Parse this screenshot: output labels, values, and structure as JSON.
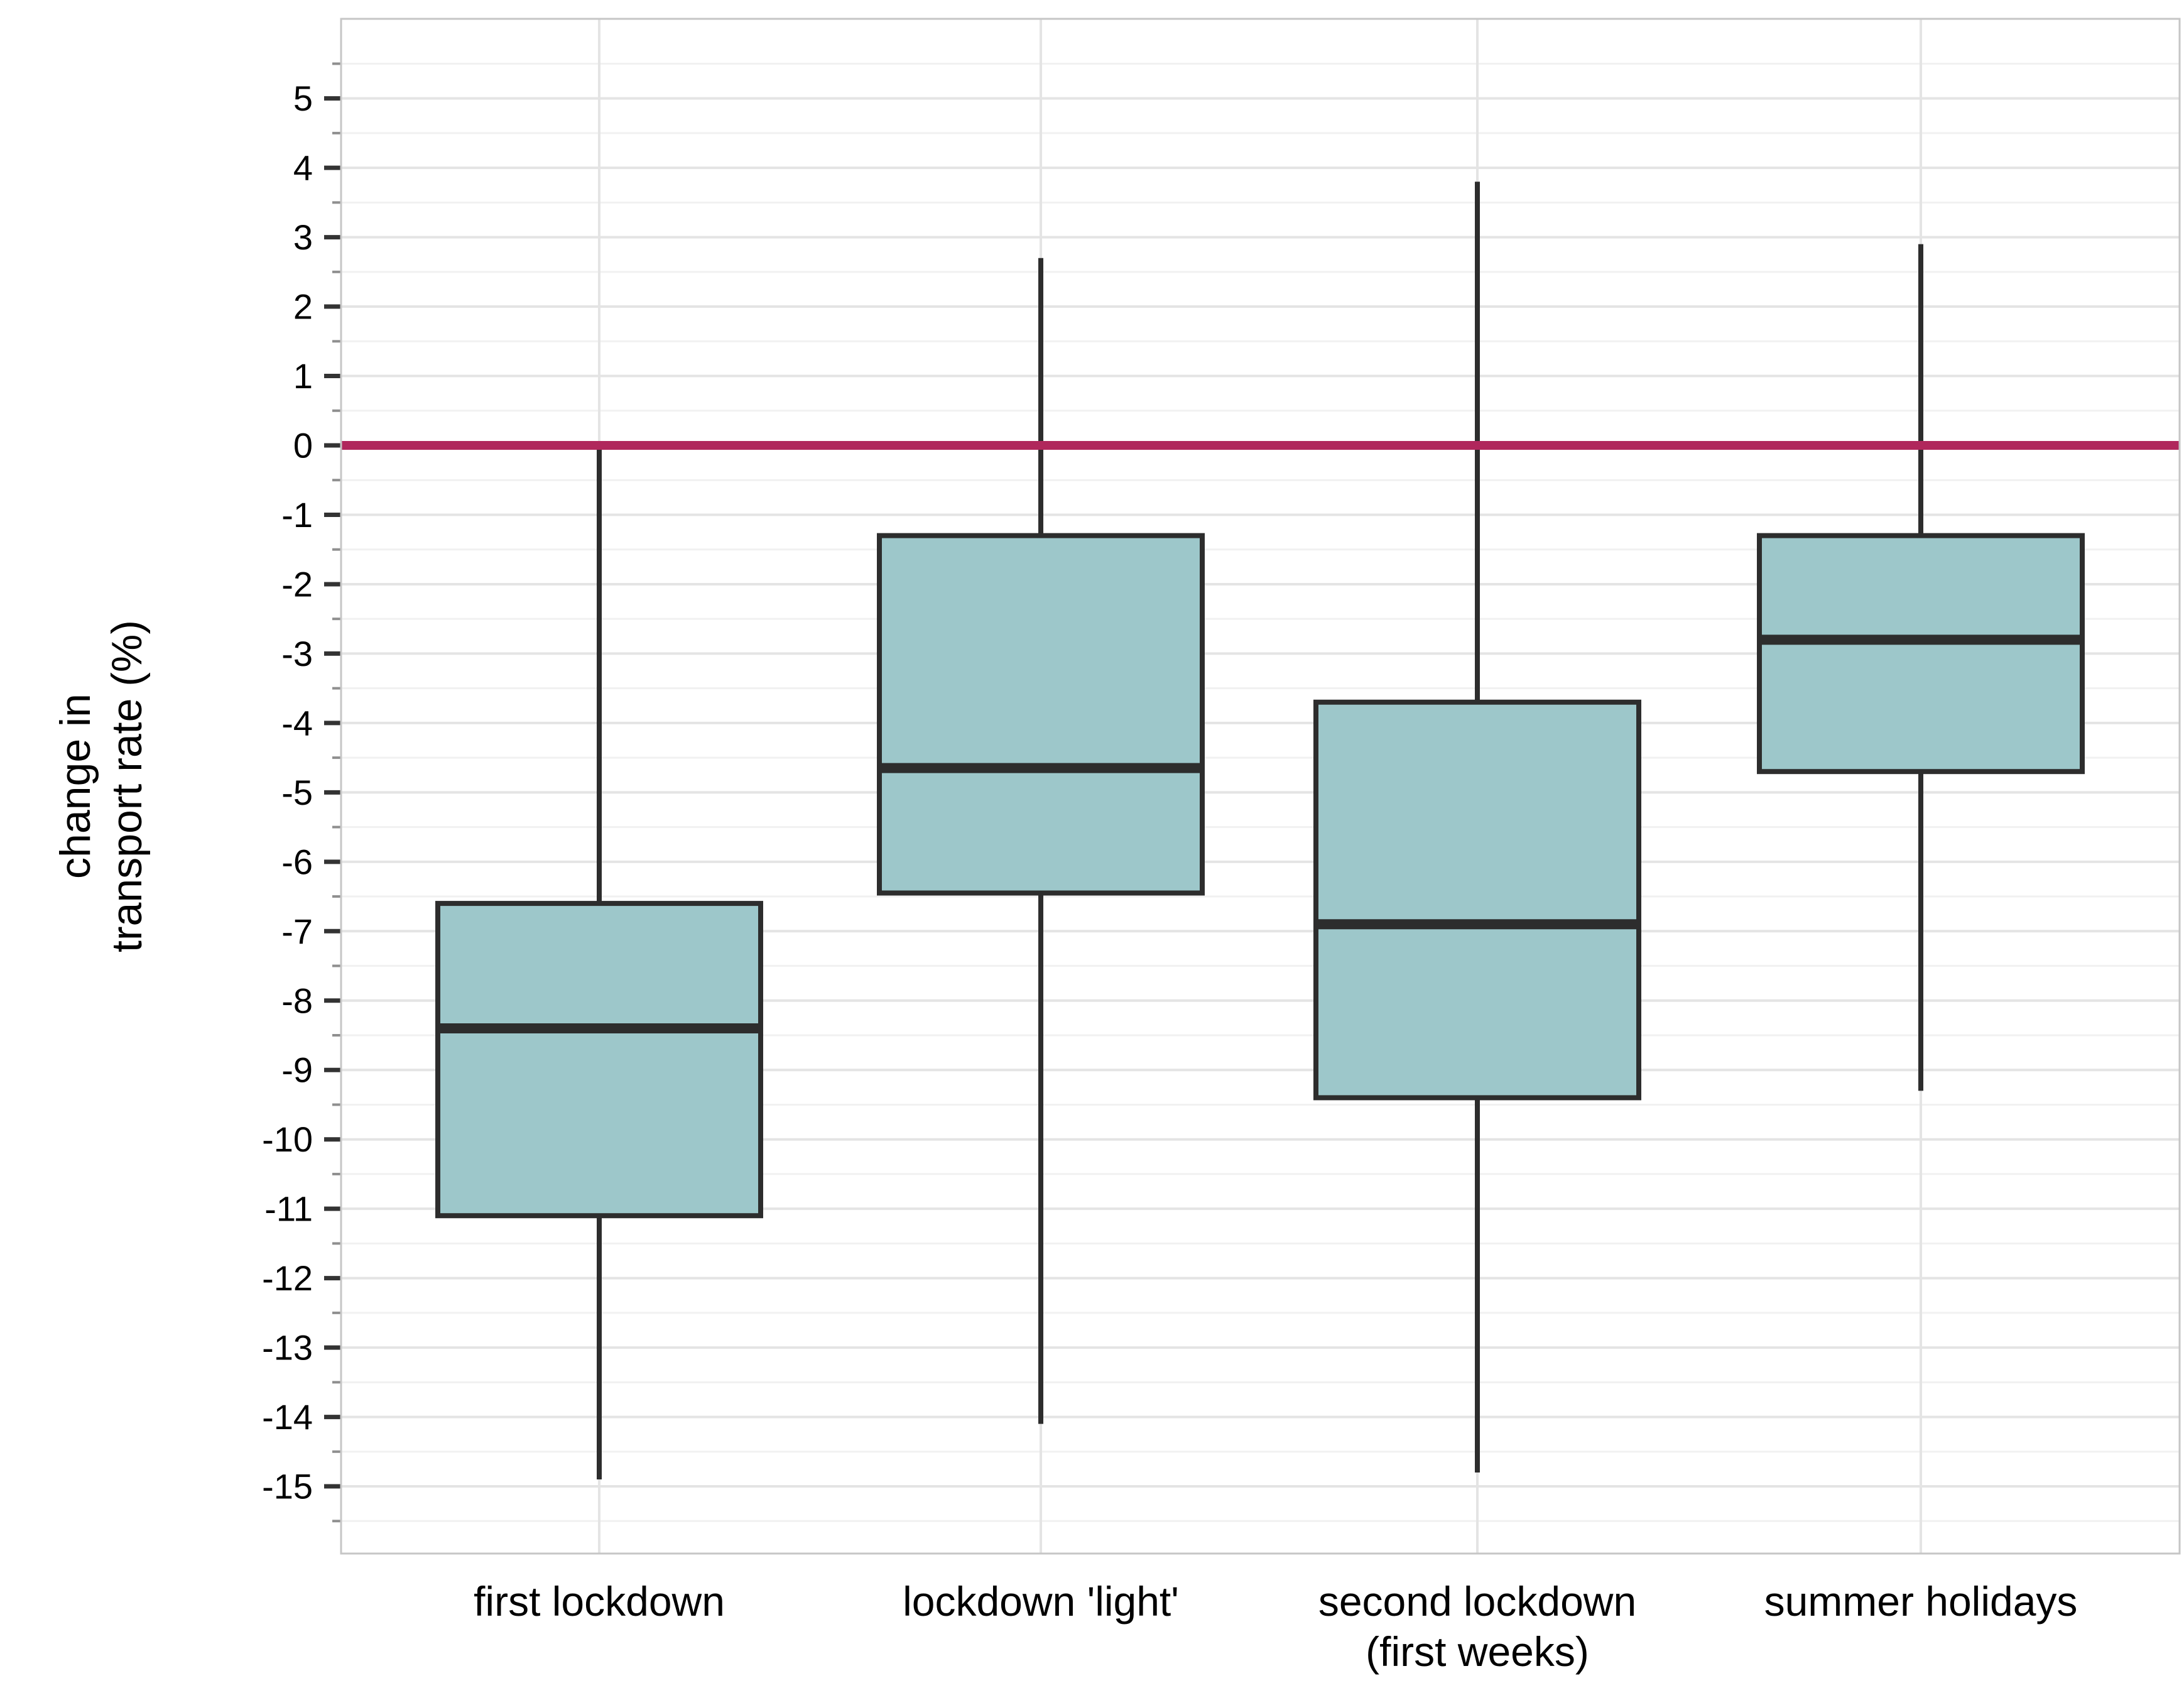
{
  "chart_data": {
    "type": "boxplot",
    "title": "",
    "xlabel": "",
    "ylabel_lines": [
      "change in",
      "transport rate (%)"
    ],
    "categories": [
      {
        "id": "first-lockdown",
        "label_lines": [
          "first lockdown"
        ]
      },
      {
        "id": "lockdown-light",
        "label_lines": [
          "lockdown 'light'"
        ]
      },
      {
        "id": "second-lockdown",
        "label_lines": [
          "second lockdown",
          "(first weeks)"
        ]
      },
      {
        "id": "summer-holidays",
        "label_lines": [
          "summer holidays"
        ]
      }
    ],
    "boxes": [
      {
        "category": "first lockdown",
        "whisker_min": -14.9,
        "q1": -11.1,
        "median": -8.4,
        "q3": -6.6,
        "whisker_max": -0.05
      },
      {
        "category": "lockdown 'light'",
        "whisker_min": -14.1,
        "q1": -6.45,
        "median": -4.65,
        "q3": -1.3,
        "whisker_max": 2.7
      },
      {
        "category": "second lockdown (first weeks)",
        "whisker_min": -14.8,
        "q1": -9.4,
        "median": -6.9,
        "q3": -3.7,
        "whisker_max": 3.8
      },
      {
        "category": "summer holidays",
        "whisker_min": -9.3,
        "q1": -4.7,
        "median": -2.8,
        "q3": -1.3,
        "whisker_max": 2.9
      }
    ],
    "y_axis": {
      "ticks": [
        5,
        4,
        3,
        2,
        1,
        0,
        -1,
        -2,
        -3,
        -4,
        -5,
        -6,
        -7,
        -8,
        -9,
        -10,
        -11,
        -12,
        -13,
        -14,
        -15
      ],
      "minor_step": 0.5,
      "range_top": 6.15,
      "range_bottom": -15.95
    },
    "reference_line": {
      "value": 0,
      "color": "#b0275c"
    },
    "grid": true,
    "legend_position": "none",
    "colors": {
      "box_fill": "#9dc7ca",
      "box_stroke": "#2d2d2d",
      "median_stroke": "#2d2d2d",
      "whisker_stroke": "#2d2d2d",
      "grid_major": "#e4e4e4",
      "grid_minor": "#f1f1f1",
      "panel_border": "#c6c6c6",
      "tick_major": "#333333",
      "tick_minor": "#8f8f8f",
      "text": "#000000"
    }
  }
}
